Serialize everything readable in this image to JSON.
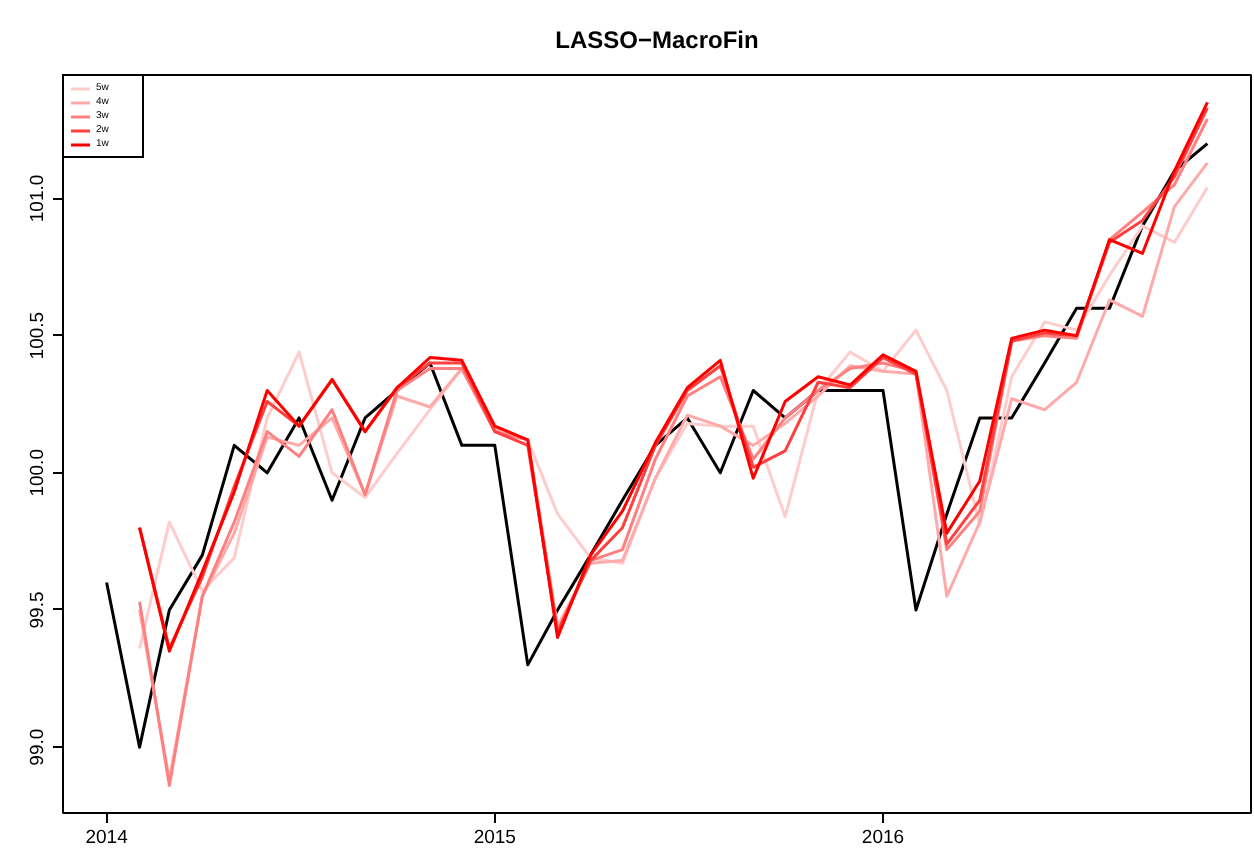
{
  "chart_data": {
    "type": "line",
    "title": "LASSO−MacroFin",
    "x": [
      "2014-01",
      "2014-02",
      "2014-03",
      "2014-04",
      "2014-05",
      "2014-06",
      "2014-07",
      "2014-08",
      "2014-09",
      "2014-10",
      "2014-11",
      "2014-12",
      "2015-01",
      "2015-02",
      "2015-03",
      "2015-04",
      "2015-05",
      "2015-06",
      "2015-07",
      "2015-08",
      "2015-09",
      "2015-10",
      "2015-11",
      "2015-12",
      "2016-01",
      "2016-02",
      "2016-03",
      "2016-04",
      "2016-05",
      "2016-06",
      "2016-07",
      "2016-08",
      "2016-09",
      "2016-10",
      "2016-11"
    ],
    "series": [
      {
        "color": "#000000",
        "values": [
          99.6,
          99.0,
          99.5,
          99.7,
          100.1,
          100.0,
          100.2,
          99.9,
          100.2,
          100.3,
          100.4,
          100.1,
          100.1,
          99.3,
          99.5,
          99.7,
          99.9,
          100.1,
          100.2,
          100.0,
          100.3,
          100.2,
          100.3,
          100.3,
          100.3,
          99.5,
          99.85,
          100.2,
          100.2,
          100.4,
          100.6,
          100.6,
          100.9,
          101.1,
          101.2
        ]
      },
      {
        "name": "5w",
        "color": "#ffcccc",
        "values": [
          null,
          99.36,
          99.82,
          99.57,
          99.69,
          100.2,
          100.44,
          100.0,
          99.91,
          100.07,
          100.23,
          100.38,
          100.15,
          100.12,
          99.85,
          99.69,
          99.67,
          99.98,
          100.18,
          100.17,
          100.17,
          99.84,
          100.3,
          100.44,
          100.37,
          100.52,
          100.3,
          99.81,
          100.35,
          100.55,
          100.52,
          100.72,
          100.9,
          100.84,
          101.04
        ]
      },
      {
        "name": "4w",
        "color": "#ffaaaa",
        "values": [
          null,
          99.5,
          98.88,
          99.55,
          99.78,
          100.13,
          100.1,
          100.2,
          99.92,
          100.28,
          100.24,
          100.38,
          100.16,
          100.12,
          99.44,
          99.67,
          99.68,
          99.98,
          100.21,
          100.17,
          100.1,
          100.18,
          100.28,
          100.39,
          100.37,
          100.36,
          99.55,
          99.82,
          100.27,
          100.23,
          100.33,
          100.63,
          100.57,
          100.97,
          101.13
        ]
      },
      {
        "name": "3w",
        "color": "#ff8080",
        "values": [
          null,
          99.53,
          98.86,
          99.55,
          99.82,
          100.15,
          100.06,
          100.23,
          99.92,
          100.3,
          100.38,
          100.38,
          100.15,
          100.12,
          99.42,
          99.68,
          99.72,
          100.05,
          100.28,
          100.35,
          100.05,
          100.2,
          100.3,
          100.38,
          100.4,
          100.37,
          99.72,
          99.86,
          100.48,
          100.5,
          100.49,
          100.85,
          100.95,
          101.05,
          101.29
        ]
      },
      {
        "name": "2w",
        "color": "#ff4040",
        "values": [
          null,
          99.8,
          99.36,
          99.62,
          99.95,
          100.26,
          100.17,
          100.34,
          100.15,
          100.31,
          100.4,
          100.4,
          100.15,
          100.1,
          99.42,
          99.68,
          99.8,
          100.1,
          100.3,
          100.39,
          100.02,
          100.08,
          100.33,
          100.31,
          100.42,
          100.36,
          99.74,
          99.9,
          100.48,
          100.51,
          100.5,
          100.84,
          100.92,
          101.08,
          101.33
        ]
      },
      {
        "name": "1w",
        "color": "#ff0000",
        "values": [
          null,
          99.8,
          99.35,
          99.64,
          99.93,
          100.3,
          100.17,
          100.34,
          100.15,
          100.31,
          100.42,
          100.41,
          100.17,
          100.12,
          99.4,
          99.7,
          99.86,
          100.11,
          100.31,
          100.41,
          99.98,
          100.26,
          100.35,
          100.32,
          100.43,
          100.37,
          99.78,
          99.97,
          100.49,
          100.52,
          100.5,
          100.85,
          100.8,
          101.1,
          101.35
        ]
      }
    ],
    "xlim": [
      "2013-11-21",
      "2016-12-12"
    ],
    "xticks": [
      {
        "value": "2014-01-01",
        "label": "2014"
      },
      {
        "value": "2015-01-01",
        "label": "2015"
      },
      {
        "value": "2016-01-01",
        "label": "2016"
      }
    ],
    "ylim": [
      98.76,
      101.45
    ],
    "yticks": [
      {
        "value": 99.0,
        "label": "99.0"
      },
      {
        "value": 99.5,
        "label": "99.5"
      },
      {
        "value": 100.0,
        "label": "100.0"
      },
      {
        "value": 100.5,
        "label": "100.5"
      },
      {
        "value": 101.0,
        "label": "101.0"
      }
    ],
    "grid": false,
    "legend": "top left"
  }
}
